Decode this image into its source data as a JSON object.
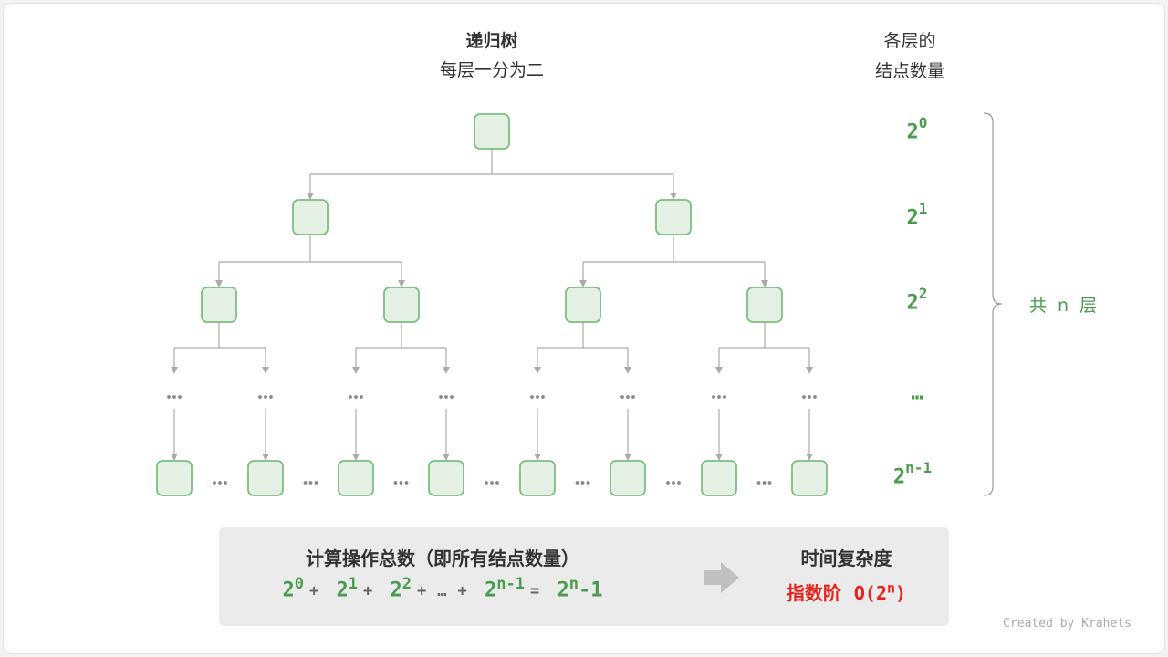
{
  "header": {
    "title": "递归树",
    "subtitle": "每层一分为二"
  },
  "levels": {
    "heading_line1": "各层的",
    "heading_line2": "结点数量",
    "items": [
      {
        "base": "2",
        "exp": "0"
      },
      {
        "base": "2",
        "exp": "1"
      },
      {
        "base": "2",
        "exp": "2"
      },
      {
        "base": "…",
        "exp": ""
      },
      {
        "base": "2",
        "exp": "n-1"
      }
    ],
    "total_label": "共 n 层"
  },
  "tree": {
    "ellipsis": "•••"
  },
  "summary": {
    "title": "计算操作总数（即所有结点数量）",
    "formula": {
      "t0": "2",
      "e0": "0",
      "plus": "+",
      "t1": "2",
      "e1": "1",
      "t2": "2",
      "e2": "2",
      "dots": "…",
      "t3": "2",
      "e3": "n-1",
      "eq": "=",
      "r": "2",
      "re": "n",
      "rtail": "-1"
    },
    "complexity_title": "时间复杂度",
    "complexity_name": "指数阶",
    "complexity_value_prefix": "O(2",
    "complexity_value_exp": "n",
    "complexity_value_suffix": ")"
  },
  "colors": {
    "node_fill": "#e3f0e3",
    "node_stroke": "#7cbf7e",
    "accent_green": "#4a9a4f",
    "red": "#e8211b",
    "line": "#aaaaaa"
  },
  "credit": "Created by Krahets"
}
